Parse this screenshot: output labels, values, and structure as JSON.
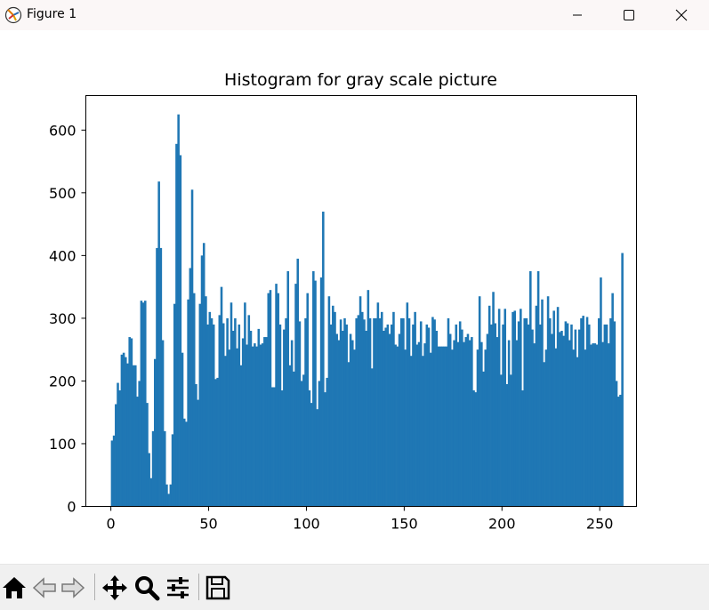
{
  "window": {
    "title": "Figure 1",
    "controls": [
      "minimize-icon",
      "maximize-icon",
      "close-icon"
    ]
  },
  "toolbar": {
    "buttons": [
      "home-icon",
      "back-icon",
      "forward-icon",
      "pan-icon",
      "zoom-icon",
      "configure-subplots-icon",
      "save-icon"
    ]
  },
  "colors": {
    "bar": "#1f77b4",
    "axes": "#000000",
    "background": "#ffffff"
  },
  "chart_data": {
    "type": "bar",
    "title": "Histogram for gray scale picture",
    "xlabel": "",
    "ylabel": "",
    "xlim": [
      -12.8,
      268.8
    ],
    "ylim": [
      0,
      655
    ],
    "xticks": [
      0,
      50,
      100,
      150,
      200,
      250
    ],
    "yticks": [
      0,
      100,
      200,
      300,
      400,
      500,
      600
    ],
    "grid": false,
    "bin_start": 0,
    "bin_width": 1,
    "values": [
      105,
      113,
      163,
      197,
      185,
      242,
      245,
      238,
      228,
      270,
      268,
      225,
      225,
      175,
      200,
      328,
      325,
      328,
      165,
      85,
      45,
      120,
      235,
      412,
      518,
      412,
      265,
      120,
      35,
      20,
      35,
      115,
      323,
      578,
      625,
      560,
      245,
      140,
      135,
      330,
      380,
      505,
      340,
      195,
      170,
      323,
      400,
      420,
      335,
      290,
      310,
      300,
      290,
      203,
      205,
      305,
      350,
      292,
      240,
      300,
      250,
      325,
      280,
      300,
      252,
      290,
      225,
      268,
      325,
      258,
      305,
      280,
      255,
      260,
      255,
      283,
      258,
      260,
      270,
      270,
      340,
      345,
      190,
      190,
      355,
      340,
      290,
      185,
      282,
      300,
      375,
      225,
      265,
      215,
      355,
      395,
      295,
      200,
      210,
      300,
      340,
      185,
      165,
      375,
      360,
      155,
      200,
      365,
      470,
      182,
      205,
      335,
      290,
      320,
      310,
      275,
      265,
      298,
      280,
      300,
      290,
      230,
      275,
      265,
      250,
      300,
      305,
      335,
      310,
      298,
      280,
      345,
      300,
      220,
      300,
      300,
      325,
      300,
      310,
      280,
      285,
      290,
      275,
      290,
      310,
      258,
      255,
      275,
      300,
      300,
      250,
      325,
      300,
      240,
      290,
      310,
      258,
      262,
      295,
      240,
      260,
      290,
      285,
      245,
      302,
      298,
      280,
      255,
      255,
      255,
      255,
      255,
      300,
      275,
      250,
      265,
      290,
      262,
      295,
      282,
      262,
      270,
      275,
      265,
      270,
      185,
      182,
      250,
      335,
      262,
      215,
      250,
      275,
      320,
      290,
      342,
      292,
      270,
      315,
      210,
      290,
      315,
      195,
      265,
      210,
      310,
      312,
      265,
      295,
      315,
      185,
      300,
      300,
      290,
      375,
      282,
      260,
      320,
      375,
      290,
      330,
      230,
      250,
      335,
      300,
      275,
      312,
      252,
      318,
      278,
      280,
      272,
      295,
      292,
      265,
      290,
      250,
      282,
      238,
      282,
      300,
      304,
      250,
      302,
      290,
      258,
      260,
      260,
      258,
      300,
      365,
      262,
      290,
      290,
      260,
      300,
      340,
      295,
      200,
      175,
      178,
      404
    ]
  }
}
